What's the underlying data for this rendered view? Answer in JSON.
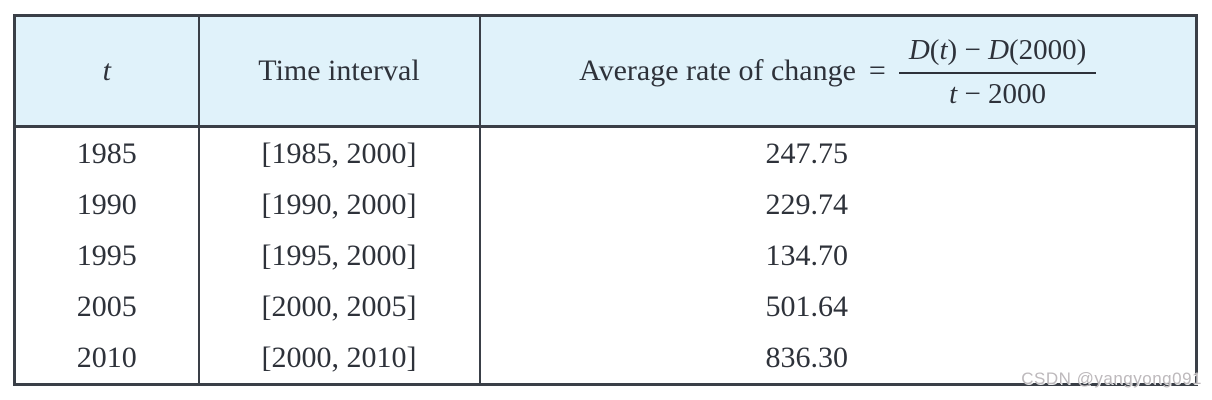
{
  "table": {
    "header": {
      "t_label": "t",
      "interval_label": "Time interval",
      "formula": {
        "label": "Average rate of change",
        "equals": "=",
        "numerator": [
          {
            "text": "D",
            "italic": true
          },
          {
            "text": "(",
            "italic": false
          },
          {
            "text": "t",
            "italic": true
          },
          {
            "text": ")",
            "italic": false
          },
          {
            "text": " − ",
            "italic": false
          },
          {
            "text": "D",
            "italic": true
          },
          {
            "text": "(2000)",
            "italic": false
          }
        ],
        "denominator": [
          {
            "text": "t",
            "italic": true
          },
          {
            "text": " − 2000",
            "italic": false
          }
        ]
      }
    },
    "rows": [
      {
        "t": "1985",
        "interval": "[1985, 2000]",
        "value": "247.75"
      },
      {
        "t": "1990",
        "interval": "[1990, 2000]",
        "value": "229.74"
      },
      {
        "t": "1995",
        "interval": "[1995, 2000]",
        "value": "134.70"
      },
      {
        "t": "2005",
        "interval": "[2000, 2005]",
        "value": "501.64"
      },
      {
        "t": "2010",
        "interval": "[2000, 2010]",
        "value": "836.30"
      }
    ]
  },
  "chart_data": {
    "type": "table",
    "columns": [
      "t",
      "Time interval",
      "Average rate of change = (D(t) − D(2000)) / (t − 2000)"
    ],
    "rows": [
      [
        "1985",
        "[1985, 2000]",
        "247.75"
      ],
      [
        "1990",
        "[1990, 2000]",
        "229.74"
      ],
      [
        "1995",
        "[1995, 2000]",
        "134.70"
      ],
      [
        "2005",
        "[2000, 2005]",
        "501.64"
      ],
      [
        "2010",
        "[2000, 2010]",
        "836.30"
      ]
    ]
  },
  "watermark": "CSDN @yangyong091",
  "colors": {
    "header_bg": "#e0f2fa",
    "border": "#3a3f47",
    "text": "#2e323a",
    "watermark": "#bdb9bc"
  }
}
